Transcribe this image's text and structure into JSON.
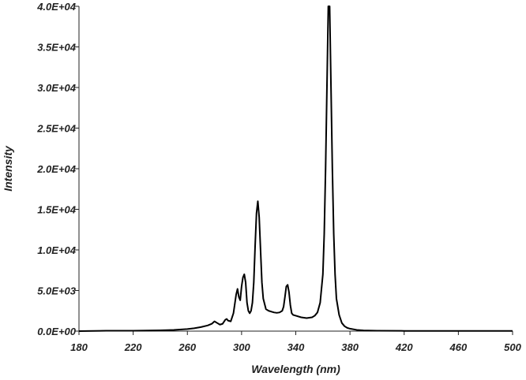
{
  "chart_data": {
    "type": "line",
    "title": "",
    "xlabel": "Wavelength (nm)",
    "ylabel": "Intensity",
    "xlim": [
      180,
      500
    ],
    "ylim": [
      0,
      40000
    ],
    "grid": false,
    "x_ticks": [
      180,
      220,
      260,
      300,
      340,
      380,
      420,
      460,
      500
    ],
    "x_tick_labels": [
      "180",
      "220",
      "260",
      "300",
      "340",
      "380",
      "420",
      "460",
      "500"
    ],
    "y_ticks": [
      0,
      5000,
      10000,
      15000,
      20000,
      25000,
      30000,
      35000,
      40000
    ],
    "y_tick_labels": [
      "0.0E+00",
      "5.0E+03",
      "1.0E+04",
      "1.5E+04",
      "2.0E+04",
      "2.5E+04",
      "3.0E+04",
      "3.5E+04",
      "4.0E+04"
    ],
    "series": [
      {
        "color": "#000000",
        "x": [
          180,
          200,
          220,
          240,
          250,
          260,
          265,
          270,
          275,
          278,
          280,
          282,
          284,
          286,
          288,
          289,
          290,
          292,
          294,
          296,
          297,
          298,
          299,
          300,
          301,
          302,
          303,
          304,
          305,
          306,
          307,
          308,
          309,
          310,
          311,
          312,
          313,
          314,
          315,
          316,
          318,
          320,
          322,
          324,
          326,
          328,
          330,
          331,
          332,
          333,
          334,
          335,
          336,
          337,
          338,
          340,
          344,
          348,
          352,
          354,
          356,
          358,
          360,
          361,
          362,
          363,
          364,
          365,
          366,
          367,
          368,
          369,
          370,
          372,
          374,
          376,
          378,
          380,
          385,
          390,
          400,
          420,
          440,
          460,
          480,
          500
        ],
        "y": [
          0,
          50,
          50,
          100,
          150,
          250,
          350,
          500,
          700,
          900,
          1200,
          1000,
          800,
          900,
          1400,
          1500,
          1300,
          1200,
          2200,
          4500,
          5200,
          4200,
          3800,
          5500,
          6600,
          7000,
          6000,
          3500,
          2500,
          2200,
          2500,
          3500,
          6000,
          10500,
          14500,
          16000,
          14000,
          10000,
          6000,
          4000,
          2700,
          2500,
          2400,
          2300,
          2250,
          2300,
          2500,
          3000,
          4200,
          5500,
          5700,
          4800,
          3200,
          2200,
          2000,
          1900,
          1700,
          1600,
          1700,
          1900,
          2300,
          3500,
          7000,
          12000,
          20000,
          30000,
          40000,
          40000,
          30000,
          20000,
          12000,
          7000,
          4000,
          2000,
          1000,
          600,
          400,
          300,
          150,
          80,
          50,
          30,
          20,
          20,
          20,
          20
        ]
      }
    ]
  }
}
